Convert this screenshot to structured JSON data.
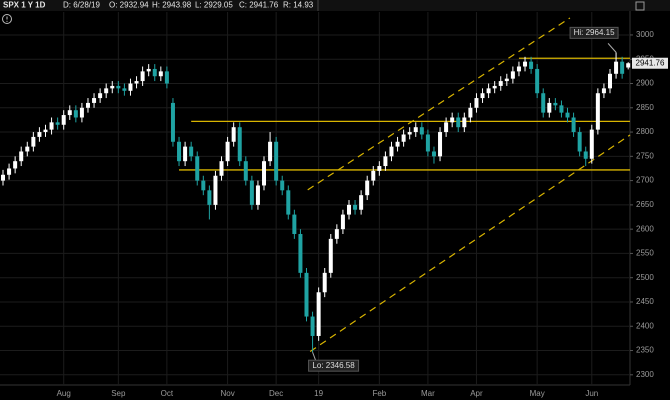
{
  "chart_data": {
    "type": "candlestick",
    "header": {
      "symbol": "SPX 1 Y 1D",
      "date": "D: 6/28/19",
      "open": "O: 2932.94",
      "high": "H: 2943.98",
      "low": "L: 2929.05",
      "close": "C: 2941.76",
      "range": "R: 14.93"
    },
    "hi_label": "Hi: 2964.15",
    "lo_label": "Lo: 2346.58",
    "categories": [
      null,
      null,
      null,
      null,
      null,
      null,
      null,
      null,
      null,
      null,
      "Aug",
      null,
      null,
      null,
      null,
      null,
      null,
      null,
      null,
      "Sep",
      null,
      null,
      null,
      null,
      null,
      null,
      null,
      "Oct",
      null,
      null,
      null,
      null,
      null,
      null,
      null,
      null,
      null,
      "Nov",
      null,
      null,
      null,
      null,
      null,
      null,
      null,
      "Dec",
      null,
      null,
      null,
      null,
      null,
      null,
      "19",
      null,
      null,
      null,
      null,
      null,
      null,
      null,
      null,
      null,
      "Feb",
      null,
      null,
      null,
      null,
      null,
      null,
      null,
      "Mar",
      null,
      null,
      null,
      null,
      null,
      null,
      null,
      "Apr",
      null,
      null,
      null,
      null,
      null,
      null,
      null,
      null,
      null,
      "May",
      null,
      null,
      null,
      null,
      null,
      null,
      null,
      null,
      "Jun",
      null,
      null,
      null,
      null,
      null,
      null
    ],
    "open": [
      2700,
      2712,
      2725,
      2740,
      2760,
      2770,
      2790,
      2800,
      2805,
      2820,
      2815,
      2835,
      2845,
      2830,
      2850,
      2860,
      2870,
      2880,
      2890,
      2895,
      2890,
      2885,
      2900,
      2905,
      2925,
      2930,
      2915,
      2925,
      2860,
      2780,
      2740,
      2770,
      2750,
      2700,
      2680,
      2650,
      2710,
      2740,
      2780,
      2810,
      2740,
      2700,
      2650,
      2690,
      2740,
      2780,
      2700,
      2680,
      2630,
      2590,
      2510,
      2420,
      2380,
      2470,
      2510,
      2580,
      2600,
      2630,
      2650,
      2640,
      2670,
      2700,
      2720,
      2730,
      2750,
      2770,
      2780,
      2795,
      2800,
      2810,
      2795,
      2760,
      2750,
      2800,
      2820,
      2830,
      2810,
      2830,
      2850,
      2870,
      2880,
      2890,
      2895,
      2905,
      2910,
      2925,
      2935,
      2945,
      2930,
      2880,
      2840,
      2860,
      2855,
      2840,
      2830,
      2800,
      2760,
      2745,
      2805,
      2880,
      2890,
      2920,
      2945,
      2932.94
    ],
    "high": [
      2722,
      2735,
      2750,
      2770,
      2780,
      2800,
      2810,
      2815,
      2830,
      2830,
      2845,
      2855,
      2855,
      2860,
      2870,
      2880,
      2890,
      2900,
      2905,
      2905,
      2900,
      2910,
      2915,
      2935,
      2940,
      2940,
      2935,
      2935,
      2870,
      2790,
      2780,
      2780,
      2760,
      2710,
      2690,
      2720,
      2750,
      2790,
      2820,
      2820,
      2750,
      2710,
      2700,
      2750,
      2800,
      2790,
      2710,
      2690,
      2640,
      2600,
      2520,
      2430,
      2480,
      2520,
      2590,
      2610,
      2640,
      2660,
      2660,
      2680,
      2710,
      2730,
      2740,
      2760,
      2780,
      2790,
      2805,
      2810,
      2820,
      2820,
      2805,
      2770,
      2810,
      2830,
      2840,
      2840,
      2840,
      2860,
      2880,
      2890,
      2900,
      2905,
      2915,
      2920,
      2935,
      2945,
      2955,
      2955,
      2940,
      2890,
      2870,
      2870,
      2865,
      2850,
      2840,
      2810,
      2770,
      2815,
      2890,
      2900,
      2930,
      2964.15,
      2955,
      2943.98
    ],
    "low": [
      2690,
      2702,
      2715,
      2730,
      2750,
      2760,
      2780,
      2790,
      2795,
      2805,
      2805,
      2825,
      2820,
      2820,
      2840,
      2850,
      2860,
      2870,
      2880,
      2880,
      2875,
      2875,
      2890,
      2895,
      2915,
      2905,
      2905,
      2890,
      2770,
      2730,
      2730,
      2740,
      2690,
      2670,
      2620,
      2640,
      2700,
      2730,
      2770,
      2730,
      2690,
      2640,
      2640,
      2680,
      2730,
      2690,
      2670,
      2620,
      2580,
      2500,
      2410,
      2346.58,
      2370,
      2460,
      2500,
      2570,
      2590,
      2620,
      2630,
      2630,
      2660,
      2690,
      2710,
      2720,
      2740,
      2760,
      2770,
      2785,
      2790,
      2785,
      2750,
      2735,
      2740,
      2790,
      2810,
      2800,
      2800,
      2820,
      2840,
      2860,
      2870,
      2880,
      2885,
      2895,
      2900,
      2915,
      2925,
      2920,
      2870,
      2830,
      2830,
      2845,
      2830,
      2820,
      2790,
      2750,
      2730,
      2735,
      2795,
      2870,
      2880,
      2910,
      2910,
      2929.05
    ],
    "close": [
      2712,
      2725,
      2740,
      2760,
      2770,
      2790,
      2800,
      2805,
      2820,
      2815,
      2835,
      2845,
      2830,
      2850,
      2860,
      2870,
      2880,
      2890,
      2895,
      2890,
      2885,
      2900,
      2905,
      2925,
      2930,
      2915,
      2925,
      2900,
      2780,
      2740,
      2770,
      2750,
      2700,
      2680,
      2650,
      2710,
      2740,
      2780,
      2810,
      2740,
      2700,
      2650,
      2690,
      2740,
      2780,
      2700,
      2680,
      2630,
      2590,
      2510,
      2420,
      2380,
      2470,
      2510,
      2580,
      2600,
      2630,
      2650,
      2640,
      2670,
      2700,
      2720,
      2730,
      2750,
      2770,
      2780,
      2795,
      2800,
      2810,
      2795,
      2760,
      2750,
      2800,
      2820,
      2830,
      2810,
      2830,
      2850,
      2870,
      2880,
      2890,
      2895,
      2905,
      2910,
      2925,
      2935,
      2945,
      2930,
      2880,
      2840,
      2860,
      2855,
      2840,
      2830,
      2800,
      2760,
      2745,
      2805,
      2880,
      2890,
      2920,
      2945,
      2920,
      2941.76
    ],
    "up_color": "#ffffff",
    "down_color": "#1fa3a3",
    "line_color": "#d8b400",
    "levels": [
      {
        "value": 2952,
        "from": 85
      },
      {
        "value": 2822,
        "from": 31
      },
      {
        "value": 2722,
        "from": 29
      }
    ],
    "trendlines": [
      {
        "start": [
          50.2,
          2681
        ],
        "end": [
          93.4,
          3035
        ]
      },
      {
        "start": [
          50.6,
          2348
        ],
        "end": [
          103.3,
          2794
        ]
      }
    ],
    "ylim": [
      2279,
      3072
    ],
    "yticks": [
      2300,
      2350,
      2400,
      2450,
      2500,
      2550,
      2600,
      2650,
      2700,
      2750,
      2800,
      2850,
      2900,
      2950,
      3000
    ],
    "grid": true
  }
}
